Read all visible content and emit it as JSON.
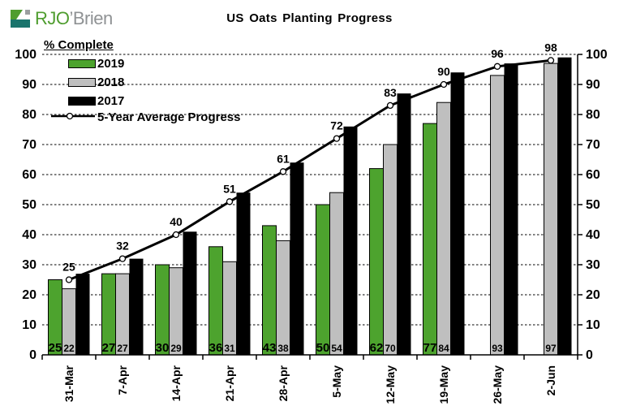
{
  "logo": {
    "text_primary": "RJO",
    "text_secondary": "’Brien"
  },
  "title": "US Oats Planting Progress",
  "chart_data": {
    "type": "bar",
    "title": "US Oats Planting Progress",
    "ylabel": "% Complete",
    "xlabel": "",
    "ylim": [
      0,
      100
    ],
    "ytick_step": 10,
    "yticks": [
      0,
      10,
      20,
      30,
      40,
      50,
      60,
      70,
      80,
      90,
      100
    ],
    "grid": "horizontal-dashed",
    "legend_position": "top-left",
    "axis_sides": "left-and-right",
    "categories": [
      "31-Mar",
      "7-Apr",
      "14-Apr",
      "21-Apr",
      "28-Apr",
      "5-May",
      "12-May",
      "19-May",
      "26-May",
      "2-Jun"
    ],
    "series": [
      {
        "name": "2019",
        "type": "bar",
        "color": "#4da32e",
        "values": [
          25,
          27,
          30,
          36,
          43,
          50,
          62,
          77,
          null,
          null
        ],
        "labels_shown": true
      },
      {
        "name": "2018",
        "type": "bar",
        "color": "#bfbfbf",
        "values": [
          22,
          27,
          29,
          31,
          38,
          54,
          70,
          84,
          93,
          97
        ],
        "labels_shown": true
      },
      {
        "name": "2017",
        "type": "bar",
        "color": "#000000",
        "values": [
          27,
          32,
          41,
          54,
          64,
          76,
          87,
          94,
          97,
          99
        ],
        "labels_shown": false
      },
      {
        "name": "5-Year Average Progress",
        "type": "line",
        "color": "#000000",
        "marker": "open-circle",
        "values": [
          25,
          32,
          40,
          51,
          61,
          72,
          83,
          90,
          96,
          98
        ],
        "labels_shown": true
      }
    ]
  },
  "logo_colors": {
    "green": "#4f9d2f",
    "teal": "#1a746c",
    "gray": "#9b9ea0"
  }
}
